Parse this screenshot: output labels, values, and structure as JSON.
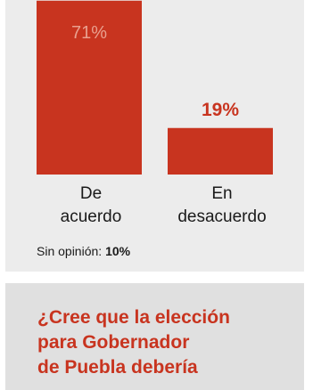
{
  "colors": {
    "bar": "#c8341f",
    "label_inside": "#e9a08f",
    "label_outside": "#c8341f"
  },
  "chart_data": {
    "type": "bar",
    "categories": [
      "De\nacuerdo",
      "En\ndesacuerdo"
    ],
    "values": [
      71,
      19
    ],
    "value_labels": [
      "71%",
      "19%"
    ],
    "ylim": [
      0,
      75
    ]
  },
  "no_opinion": {
    "label": "Sin opinión:",
    "value": "10%"
  },
  "question": "¿Cree que la elección\npara Gobernador\nde Puebla debería"
}
